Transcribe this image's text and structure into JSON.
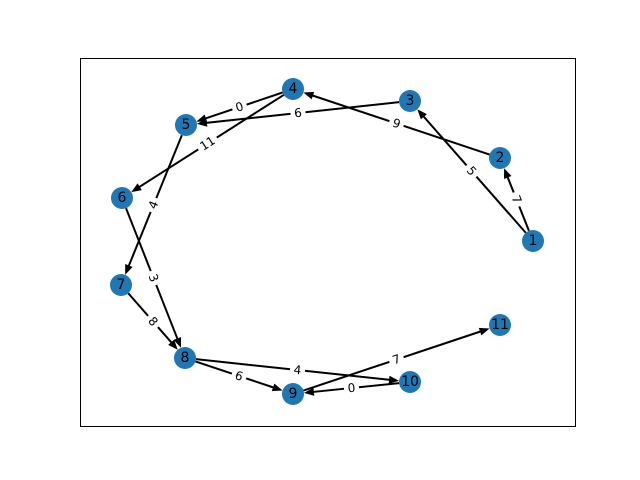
{
  "graph": {
    "type": "directed-weighted-graph",
    "node_color": "#1f77b4",
    "edge_color": "#000000",
    "nodes": [
      {
        "id": "1",
        "label": "1"
      },
      {
        "id": "2",
        "label": "2"
      },
      {
        "id": "3",
        "label": "3"
      },
      {
        "id": "4",
        "label": "4"
      },
      {
        "id": "5",
        "label": "5"
      },
      {
        "id": "6",
        "label": "6"
      },
      {
        "id": "7",
        "label": "7"
      },
      {
        "id": "8",
        "label": "8"
      },
      {
        "id": "9",
        "label": "9"
      },
      {
        "id": "10",
        "label": "10"
      },
      {
        "id": "11",
        "label": "11"
      }
    ],
    "edges": [
      {
        "source": "1",
        "target": "2",
        "weight": "7"
      },
      {
        "source": "1",
        "target": "3",
        "weight": "5"
      },
      {
        "source": "2",
        "target": "4",
        "weight": "9"
      },
      {
        "source": "3",
        "target": "5",
        "weight": "6"
      },
      {
        "source": "4",
        "target": "5",
        "weight": "0"
      },
      {
        "source": "4",
        "target": "6",
        "weight": "11"
      },
      {
        "source": "5",
        "target": "7",
        "weight": "4"
      },
      {
        "source": "6",
        "target": "8",
        "weight": "3"
      },
      {
        "source": "7",
        "target": "8",
        "weight": "8"
      },
      {
        "source": "8",
        "target": "9",
        "weight": "6"
      },
      {
        "source": "8",
        "target": "10",
        "weight": "4"
      },
      {
        "source": "10",
        "target": "9",
        "weight": "0"
      },
      {
        "source": "9",
        "target": "11",
        "weight": "7"
      }
    ]
  }
}
